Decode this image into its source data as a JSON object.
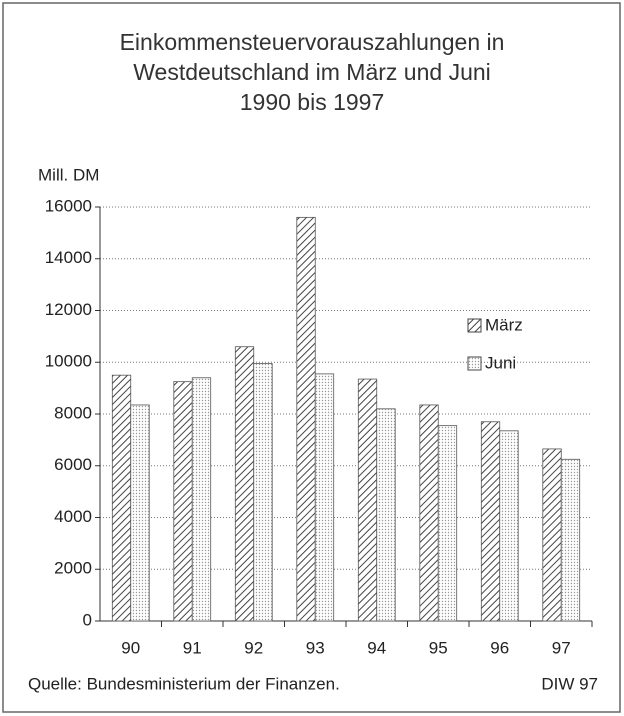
{
  "chart_data": {
    "type": "bar",
    "title": [
      "Einkommensteuervorauszahlungen in",
      "Westdeutschland im März und Juni",
      "1990 bis 1997"
    ],
    "y_label": "Mill. DM",
    "categories": [
      "90",
      "91",
      "92",
      "93",
      "94",
      "95",
      "96",
      "97"
    ],
    "series": [
      {
        "name": "März",
        "color": "#444444",
        "pattern": "hatch",
        "values": [
          9500,
          9250,
          10600,
          15600,
          9350,
          8350,
          7700,
          6650
        ]
      },
      {
        "name": "Juni",
        "color": "#999999",
        "pattern": "dots",
        "values": [
          8350,
          9400,
          9950,
          9550,
          8200,
          7550,
          7350,
          6250
        ]
      }
    ],
    "ylim": [
      0,
      16000
    ],
    "yticks": [
      0,
      2000,
      4000,
      6000,
      8000,
      10000,
      12000,
      14000,
      16000
    ],
    "grid": true,
    "legend": "right",
    "annotations": [
      "Quelle: Bundesministerium der Finanzen.",
      "DIW 97"
    ]
  }
}
